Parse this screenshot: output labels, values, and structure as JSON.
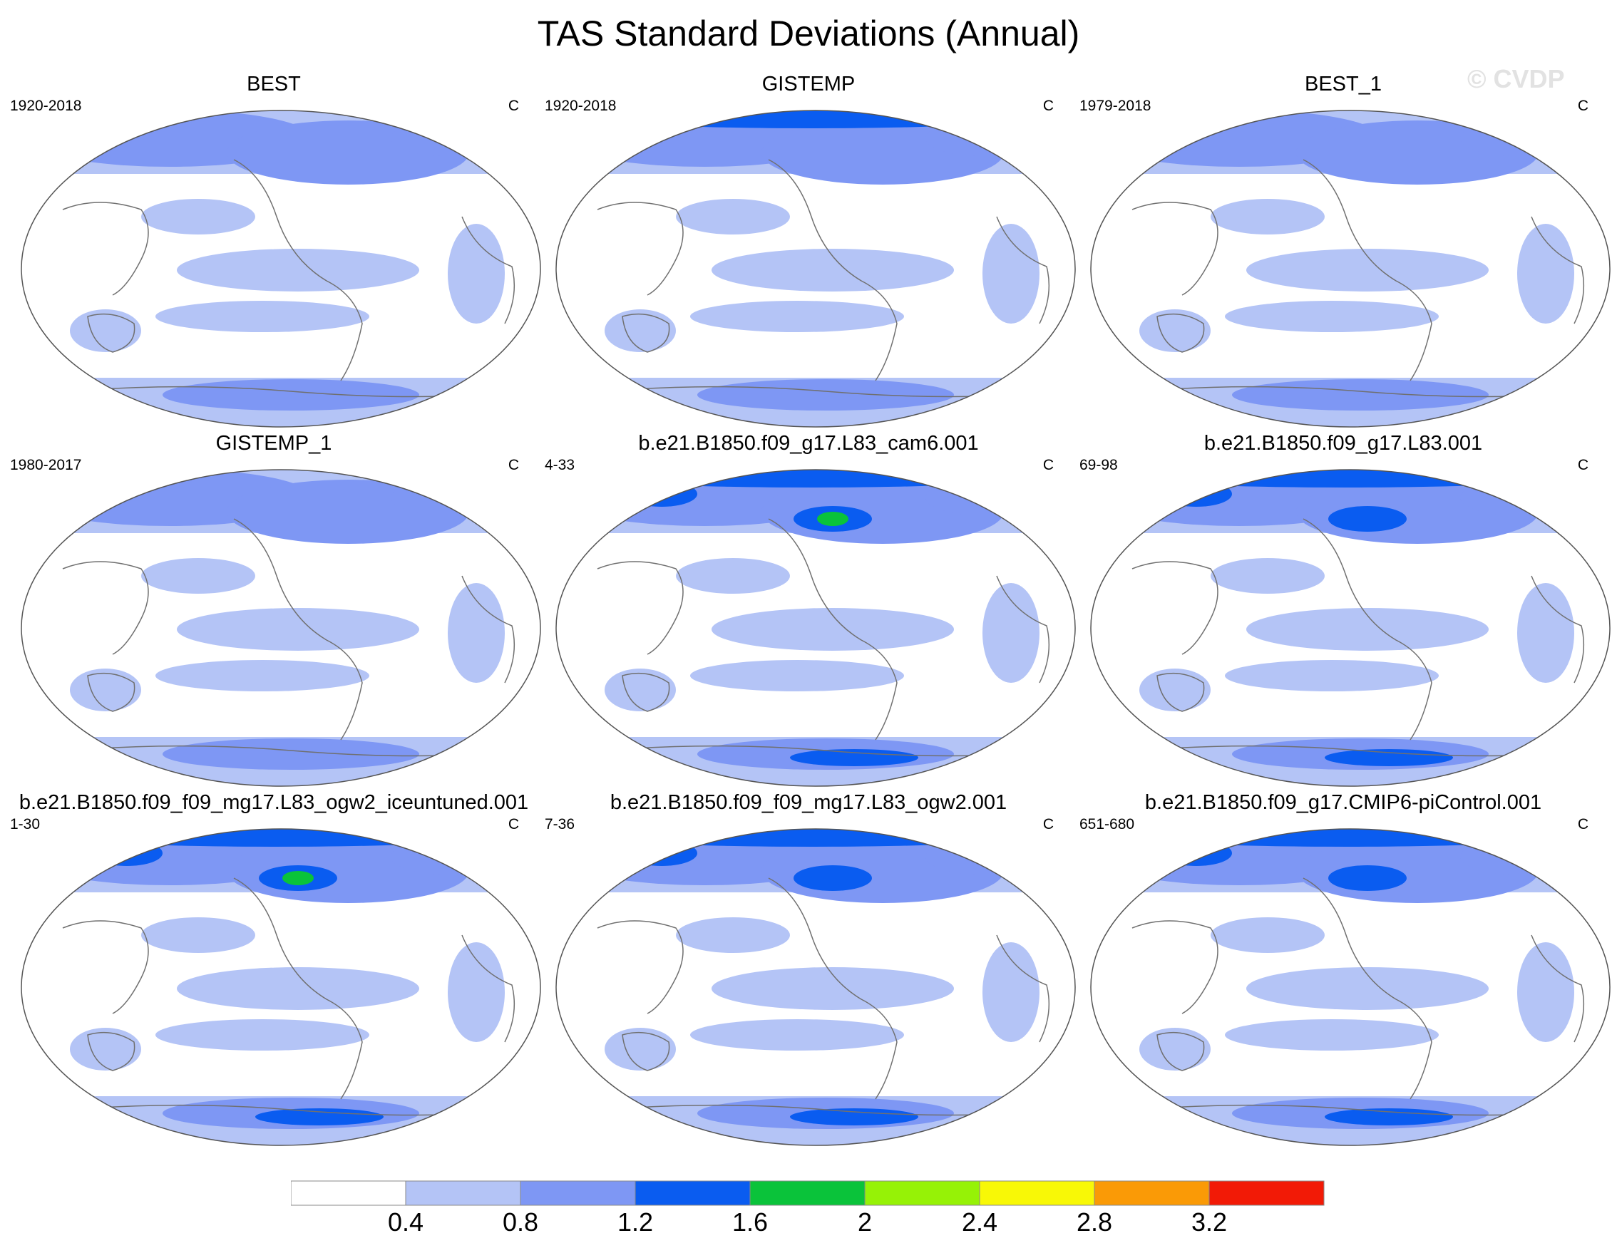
{
  "title": "TAS Standard Deviations (Annual)",
  "watermark": "© CVDP",
  "units": "C",
  "colors": {
    "levels": [
      "#ffffff",
      "#b4c4f6",
      "#7e97f4",
      "#0a5cf0",
      "#0ac33a",
      "#96f206",
      "#f8f806",
      "#fa9a06",
      "#f21a06"
    ],
    "coast": "#707070"
  },
  "colorbar": {
    "labels": [
      "0.4",
      "0.8",
      "1.2",
      "1.6",
      "2",
      "2.4",
      "2.8",
      "3.2"
    ]
  },
  "panels": [
    {
      "title": "BEST",
      "years": "1920-2018"
    },
    {
      "title": "GISTEMP",
      "years": "1920-2018"
    },
    {
      "title": "BEST_1",
      "years": "1979-2018"
    },
    {
      "title": "GISTEMP_1",
      "years": "1980-2017"
    },
    {
      "title": "b.e21.B1850.f09_g17.L83_cam6.001",
      "years": "4-33"
    },
    {
      "title": "b.e21.B1850.f09_g17.L83.001",
      "years": "69-98"
    },
    {
      "title": "b.e21.B1850.f09_f09_mg17.L83_ogw2_iceuntuned.001",
      "years": "1-30"
    },
    {
      "title": "b.e21.B1850.f09_f09_mg17.L83_ogw2.001",
      "years": "7-36"
    },
    {
      "title": "b.e21.B1850.f09_g17.CMIP6-piControl.001",
      "years": "651-680"
    }
  ]
}
